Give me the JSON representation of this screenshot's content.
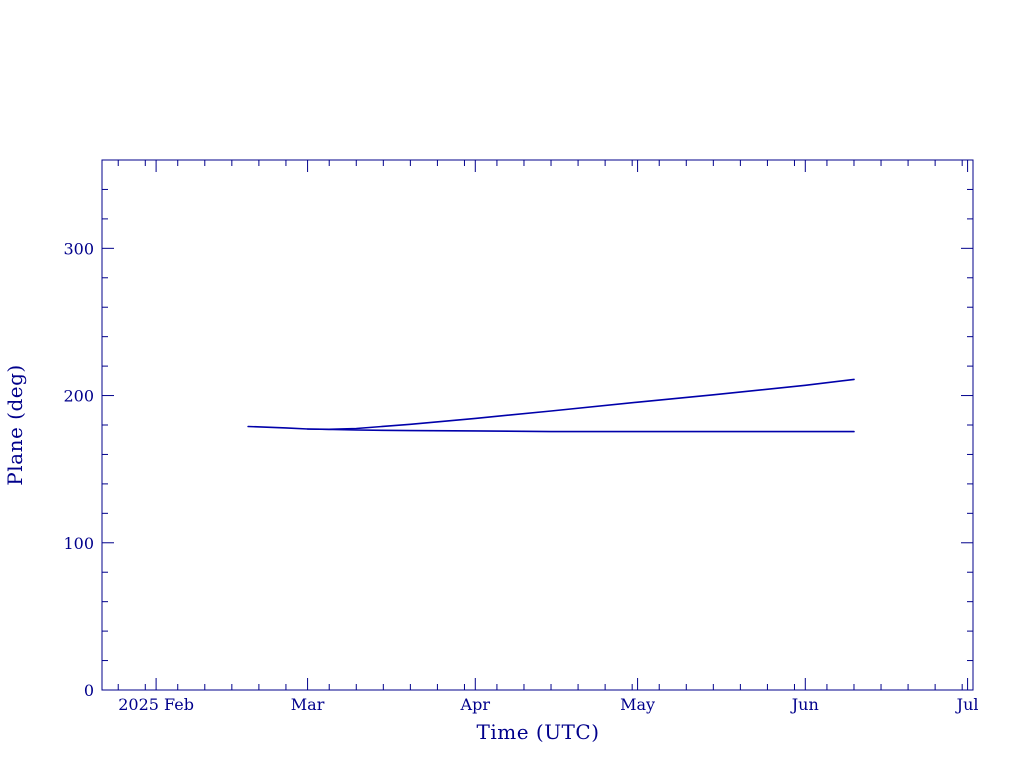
{
  "chart_data": {
    "type": "line",
    "xlabel": "Time (UTC)",
    "ylabel": "Plane (deg)",
    "x_type": "date",
    "xlim": [
      "2025-01-22",
      "2025-07-02"
    ],
    "ylim": [
      0,
      360
    ],
    "x_ticks": [
      {
        "date": "2025-02-01",
        "label": "2025 Feb"
      },
      {
        "date": "2025-03-01",
        "label": "Mar"
      },
      {
        "date": "2025-04-01",
        "label": "Apr"
      },
      {
        "date": "2025-05-01",
        "label": "May"
      },
      {
        "date": "2025-06-01",
        "label": "Jun"
      },
      {
        "date": "2025-07-01",
        "label": "Jul"
      }
    ],
    "y_ticks": [
      0,
      100,
      200,
      300
    ],
    "y_minor_step": 20,
    "grid": false,
    "color": "#00008b",
    "series": [
      {
        "x": [
          "2025-02-18",
          "2025-02-25",
          "2025-03-01",
          "2025-03-05",
          "2025-03-10",
          "2025-03-20",
          "2025-04-01",
          "2025-04-15",
          "2025-05-01",
          "2025-05-15",
          "2025-06-01",
          "2025-06-10"
        ],
        "y": [
          179,
          178,
          177.3,
          177.1,
          177.6,
          180.5,
          184.5,
          189.5,
          195.5,
          200.5,
          207,
          211
        ]
      },
      {
        "x": [
          "2025-03-01",
          "2025-03-10",
          "2025-03-20",
          "2025-04-01",
          "2025-04-15",
          "2025-05-01",
          "2025-05-15",
          "2025-06-01",
          "2025-06-10"
        ],
        "y": [
          177.3,
          176.6,
          176.2,
          176,
          175.5,
          175.5,
          175.5,
          175.5,
          175.5
        ]
      }
    ]
  }
}
